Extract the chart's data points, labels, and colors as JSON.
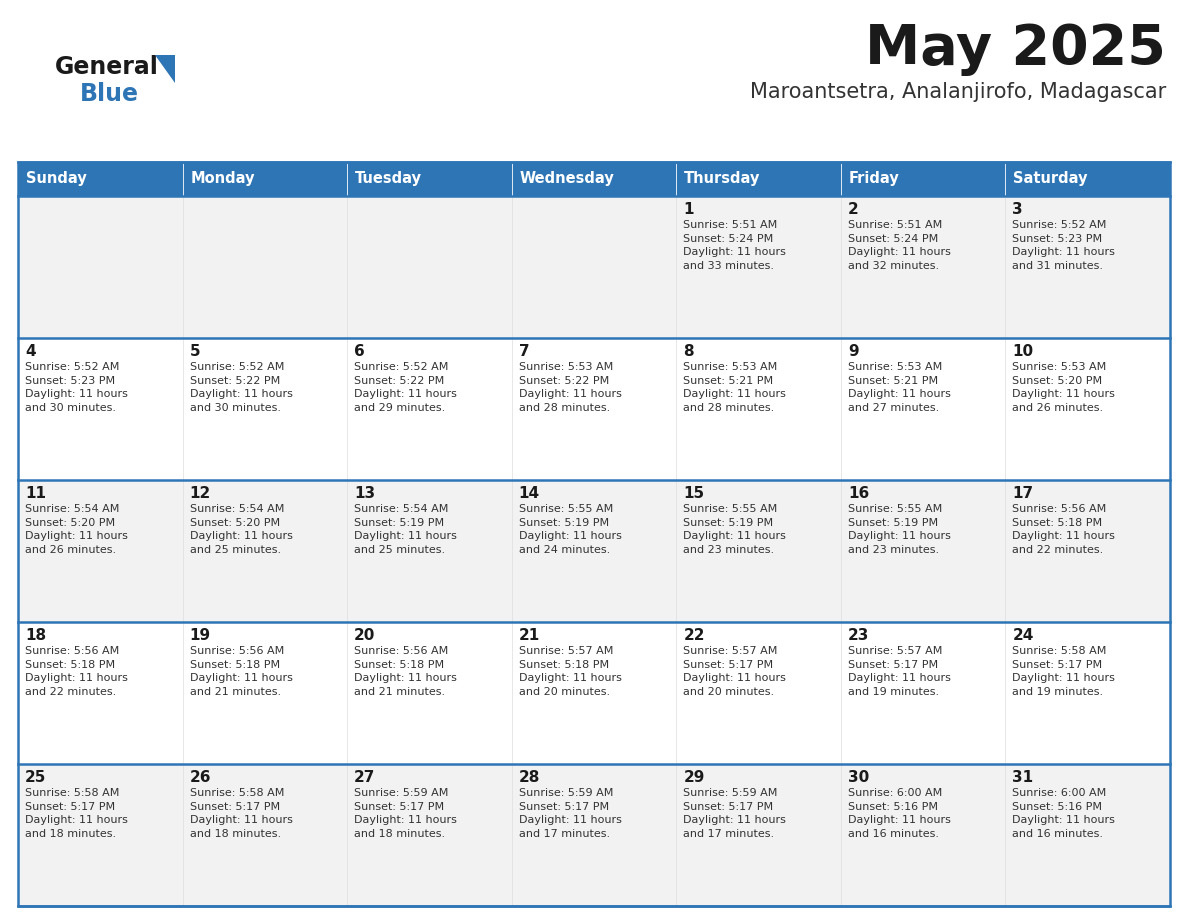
{
  "title": "May 2025",
  "subtitle": "Maroantsetra, Analanjirofo, Madagascar",
  "days_of_week": [
    "Sunday",
    "Monday",
    "Tuesday",
    "Wednesday",
    "Thursday",
    "Friday",
    "Saturday"
  ],
  "header_bg": "#2E75B6",
  "header_text": "#FFFFFF",
  "row_bg_odd": "#F2F2F2",
  "row_bg_even": "#FFFFFF",
  "cell_text_color": "#333333",
  "day_number_color": "#1a1a1a",
  "border_color": "#2E75B6",
  "title_color": "#1a1a1a",
  "subtitle_color": "#333333",
  "logo_general_color": "#1a1a1a",
  "logo_blue_color": "#2E75B6",
  "logo_triangle_color": "#2E75B6",
  "calendar": [
    [
      {
        "day": null,
        "info": null
      },
      {
        "day": null,
        "info": null
      },
      {
        "day": null,
        "info": null
      },
      {
        "day": null,
        "info": null
      },
      {
        "day": 1,
        "info": "Sunrise: 5:51 AM\nSunset: 5:24 PM\nDaylight: 11 hours\nand 33 minutes."
      },
      {
        "day": 2,
        "info": "Sunrise: 5:51 AM\nSunset: 5:24 PM\nDaylight: 11 hours\nand 32 minutes."
      },
      {
        "day": 3,
        "info": "Sunrise: 5:52 AM\nSunset: 5:23 PM\nDaylight: 11 hours\nand 31 minutes."
      }
    ],
    [
      {
        "day": 4,
        "info": "Sunrise: 5:52 AM\nSunset: 5:23 PM\nDaylight: 11 hours\nand 30 minutes."
      },
      {
        "day": 5,
        "info": "Sunrise: 5:52 AM\nSunset: 5:22 PM\nDaylight: 11 hours\nand 30 minutes."
      },
      {
        "day": 6,
        "info": "Sunrise: 5:52 AM\nSunset: 5:22 PM\nDaylight: 11 hours\nand 29 minutes."
      },
      {
        "day": 7,
        "info": "Sunrise: 5:53 AM\nSunset: 5:22 PM\nDaylight: 11 hours\nand 28 minutes."
      },
      {
        "day": 8,
        "info": "Sunrise: 5:53 AM\nSunset: 5:21 PM\nDaylight: 11 hours\nand 28 minutes."
      },
      {
        "day": 9,
        "info": "Sunrise: 5:53 AM\nSunset: 5:21 PM\nDaylight: 11 hours\nand 27 minutes."
      },
      {
        "day": 10,
        "info": "Sunrise: 5:53 AM\nSunset: 5:20 PM\nDaylight: 11 hours\nand 26 minutes."
      }
    ],
    [
      {
        "day": 11,
        "info": "Sunrise: 5:54 AM\nSunset: 5:20 PM\nDaylight: 11 hours\nand 26 minutes."
      },
      {
        "day": 12,
        "info": "Sunrise: 5:54 AM\nSunset: 5:20 PM\nDaylight: 11 hours\nand 25 minutes."
      },
      {
        "day": 13,
        "info": "Sunrise: 5:54 AM\nSunset: 5:19 PM\nDaylight: 11 hours\nand 25 minutes."
      },
      {
        "day": 14,
        "info": "Sunrise: 5:55 AM\nSunset: 5:19 PM\nDaylight: 11 hours\nand 24 minutes."
      },
      {
        "day": 15,
        "info": "Sunrise: 5:55 AM\nSunset: 5:19 PM\nDaylight: 11 hours\nand 23 minutes."
      },
      {
        "day": 16,
        "info": "Sunrise: 5:55 AM\nSunset: 5:19 PM\nDaylight: 11 hours\nand 23 minutes."
      },
      {
        "day": 17,
        "info": "Sunrise: 5:56 AM\nSunset: 5:18 PM\nDaylight: 11 hours\nand 22 minutes."
      }
    ],
    [
      {
        "day": 18,
        "info": "Sunrise: 5:56 AM\nSunset: 5:18 PM\nDaylight: 11 hours\nand 22 minutes."
      },
      {
        "day": 19,
        "info": "Sunrise: 5:56 AM\nSunset: 5:18 PM\nDaylight: 11 hours\nand 21 minutes."
      },
      {
        "day": 20,
        "info": "Sunrise: 5:56 AM\nSunset: 5:18 PM\nDaylight: 11 hours\nand 21 minutes."
      },
      {
        "day": 21,
        "info": "Sunrise: 5:57 AM\nSunset: 5:18 PM\nDaylight: 11 hours\nand 20 minutes."
      },
      {
        "day": 22,
        "info": "Sunrise: 5:57 AM\nSunset: 5:17 PM\nDaylight: 11 hours\nand 20 minutes."
      },
      {
        "day": 23,
        "info": "Sunrise: 5:57 AM\nSunset: 5:17 PM\nDaylight: 11 hours\nand 19 minutes."
      },
      {
        "day": 24,
        "info": "Sunrise: 5:58 AM\nSunset: 5:17 PM\nDaylight: 11 hours\nand 19 minutes."
      }
    ],
    [
      {
        "day": 25,
        "info": "Sunrise: 5:58 AM\nSunset: 5:17 PM\nDaylight: 11 hours\nand 18 minutes."
      },
      {
        "day": 26,
        "info": "Sunrise: 5:58 AM\nSunset: 5:17 PM\nDaylight: 11 hours\nand 18 minutes."
      },
      {
        "day": 27,
        "info": "Sunrise: 5:59 AM\nSunset: 5:17 PM\nDaylight: 11 hours\nand 18 minutes."
      },
      {
        "day": 28,
        "info": "Sunrise: 5:59 AM\nSunset: 5:17 PM\nDaylight: 11 hours\nand 17 minutes."
      },
      {
        "day": 29,
        "info": "Sunrise: 5:59 AM\nSunset: 5:17 PM\nDaylight: 11 hours\nand 17 minutes."
      },
      {
        "day": 30,
        "info": "Sunrise: 6:00 AM\nSunset: 5:16 PM\nDaylight: 11 hours\nand 16 minutes."
      },
      {
        "day": 31,
        "info": "Sunrise: 6:00 AM\nSunset: 5:16 PM\nDaylight: 11 hours\nand 16 minutes."
      }
    ]
  ]
}
